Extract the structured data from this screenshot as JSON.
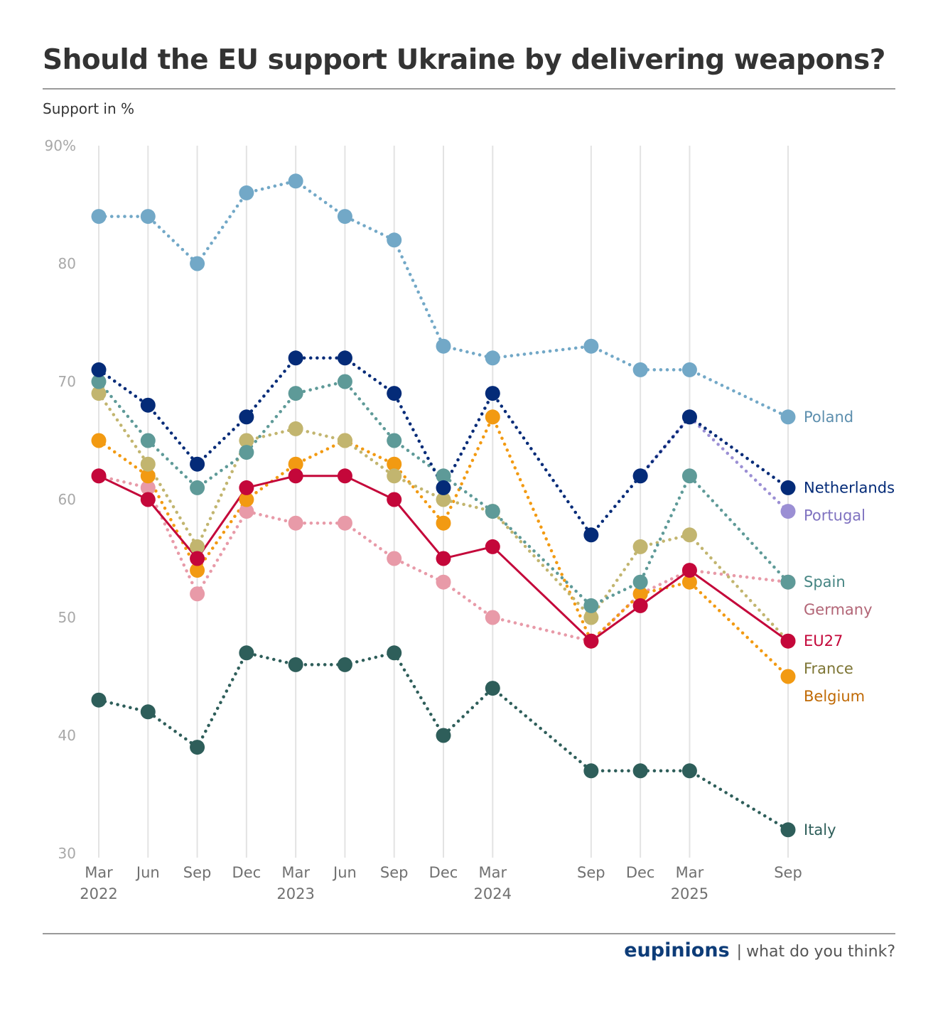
{
  "header": {
    "title": "Should the EU support Ukraine by delivering weapons?",
    "subtitle": "Support in %"
  },
  "footer": {
    "brand": "eupinions",
    "separator": "|",
    "tagline": "what do you think?",
    "brand_color": "#0d3c78"
  },
  "chart_data": {
    "type": "line",
    "title": "Should the EU support Ukraine by delivering weapons?",
    "ylabel": "Support in %",
    "xlabel": "",
    "ylim": [
      30,
      90
    ],
    "yticks": [
      30,
      40,
      50,
      60,
      70,
      80,
      90
    ],
    "ytick_labels": [
      "30",
      "40",
      "50",
      "60",
      "70",
      "80",
      "90%"
    ],
    "grid": "vertical",
    "legend": "right (direct labels at line ends)",
    "x": [
      "2022-03",
      "2022-06",
      "2022-09",
      "2022-12",
      "2023-03",
      "2023-06",
      "2023-09",
      "2023-12",
      "2024-03",
      "2024-09",
      "2024-12",
      "2025-03",
      "2025-09"
    ],
    "x_numeric_months": [
      0,
      3,
      6,
      9,
      12,
      15,
      18,
      21,
      24,
      30,
      33,
      36,
      42
    ],
    "x_tick_labels": [
      "Mar",
      "Jun",
      "Sep",
      "Dec",
      "Mar",
      "Jun",
      "Sep",
      "Dec",
      "Mar",
      "Sep",
      "Dec",
      "Mar",
      "Sep"
    ],
    "x_year_labels": [
      "2022",
      "",
      "",
      "",
      "2023",
      "",
      "",
      "",
      "2024",
      "",
      "",
      "2025",
      ""
    ],
    "series": [
      {
        "name": "Poland",
        "color": "#72a8c7",
        "label_color": "#5d8fae",
        "style": "dotted",
        "values": [
          84,
          84,
          80,
          86,
          87,
          84,
          82,
          73,
          72,
          73,
          71,
          71,
          67
        ]
      },
      {
        "name": "Italy",
        "color": "#2e5e5a",
        "label_color": "#2e5e5a",
        "style": "dotted",
        "values": [
          43,
          42,
          39,
          47,
          46,
          46,
          47,
          40,
          44,
          37,
          37,
          37,
          32
        ]
      },
      {
        "name": "Germany",
        "color": "#e89aa8",
        "label_color": "#b26576",
        "style": "dotted",
        "values": [
          62,
          61,
          52,
          59,
          58,
          58,
          55,
          53,
          50,
          48,
          52,
          54,
          53
        ]
      },
      {
        "name": "Belgium",
        "color": "#f29a12",
        "label_color": "#c06a05",
        "style": "dotted",
        "values": [
          65,
          62,
          54,
          60,
          63,
          65,
          63,
          58,
          67,
          48,
          52,
          53,
          45
        ]
      },
      {
        "name": "France",
        "color": "#c2b56f",
        "label_color": "#7d7534",
        "style": "dotted",
        "values": [
          69,
          63,
          56,
          65,
          66,
          65,
          62,
          60,
          59,
          50,
          56,
          57,
          48
        ]
      },
      {
        "name": "Spain",
        "color": "#5e9a98",
        "label_color": "#468583",
        "style": "dotted",
        "values": [
          70,
          65,
          61,
          64,
          69,
          70,
          65,
          62,
          59,
          51,
          53,
          62,
          53
        ]
      },
      {
        "name": "Portugal",
        "color": "#9b8fd4",
        "label_color": "#7f72c0",
        "style": "dotted",
        "values": [
          null,
          null,
          null,
          null,
          null,
          null,
          null,
          null,
          null,
          null,
          62,
          67,
          59
        ]
      },
      {
        "name": "Netherlands",
        "color": "#042b78",
        "label_color": "#042b78",
        "style": "dotted",
        "values": [
          71,
          68,
          63,
          67,
          72,
          72,
          69,
          61,
          69,
          57,
          62,
          67,
          61
        ]
      },
      {
        "name": "EU27",
        "color": "#c4073a",
        "label_color": "#c4073a",
        "style": "solid",
        "values": [
          62,
          60,
          55,
          61,
          62,
          62,
          60,
          55,
          56,
          48,
          51,
          54,
          48
        ]
      }
    ],
    "end_label_order": [
      "Poland",
      "Netherlands",
      "Portugal",
      "Spain",
      "Germany",
      "EU27",
      "France",
      "Belgium",
      "Italy"
    ]
  }
}
